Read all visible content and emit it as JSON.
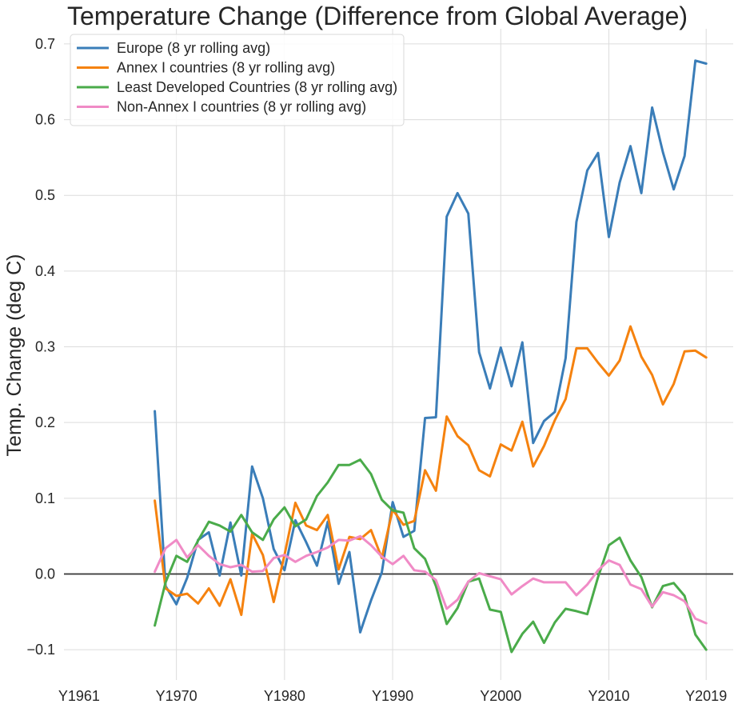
{
  "chart_data": {
    "type": "line",
    "title": "Temperature Change (Difference from Global Average)",
    "xlabel": "",
    "ylabel": "Temp. Change (deg C)",
    "grid": true,
    "legend_position": "top-left",
    "x_tick_labels": [
      "Y1961",
      "Y1970",
      "Y1980",
      "Y1990",
      "Y2000",
      "Y2010",
      "Y2019"
    ],
    "x_ticks": [
      1961,
      1970,
      1980,
      1990,
      2000,
      2010,
      2019
    ],
    "xlim": [
      1959.6,
      2021.5
    ],
    "y_ticks": [
      -0.1,
      0.0,
      0.1,
      0.2,
      0.3,
      0.4,
      0.5,
      0.6,
      0.7
    ],
    "y_tick_labels": [
      "−0.1",
      "0.0",
      "0.1",
      "0.2",
      "0.3",
      "0.4",
      "0.5",
      "0.6",
      "0.7"
    ],
    "ylim": [
      -0.14,
      0.72
    ],
    "reference_line": 0.0,
    "x": [
      1968,
      1969,
      1970,
      1971,
      1972,
      1973,
      1974,
      1975,
      1976,
      1977,
      1978,
      1979,
      1980,
      1981,
      1982,
      1983,
      1984,
      1985,
      1986,
      1987,
      1988,
      1989,
      1990,
      1991,
      1992,
      1993,
      1994,
      1995,
      1996,
      1997,
      1998,
      1999,
      2000,
      2001,
      2002,
      2003,
      2004,
      2005,
      2006,
      2007,
      2008,
      2009,
      2010,
      2011,
      2012,
      2013,
      2014,
      2015,
      2016,
      2017,
      2018,
      2019
    ],
    "series": [
      {
        "name": "Europe (8 yr rolling avg)",
        "color": "#3a7db8",
        "values": [
          0.215,
          -0.016,
          -0.04,
          -0.005,
          0.045,
          0.055,
          -0.002,
          0.068,
          -0.002,
          0.142,
          0.1,
          0.033,
          0.005,
          0.071,
          0.042,
          0.011,
          0.069,
          -0.013,
          0.029,
          -0.077,
          -0.035,
          0.002,
          0.095,
          0.049,
          0.057,
          0.206,
          0.207,
          0.472,
          0.503,
          0.476,
          0.293,
          0.245,
          0.299,
          0.248,
          0.306,
          0.173,
          0.202,
          0.214,
          0.285,
          0.465,
          0.533,
          0.556,
          0.445,
          0.517,
          0.565,
          0.503,
          0.616,
          0.557,
          0.508,
          0.552,
          0.678,
          0.674
        ]
      },
      {
        "name": "Annex I countries (8 yr rolling avg)",
        "color": "#f5820f",
        "values": [
          0.097,
          -0.019,
          -0.029,
          -0.026,
          -0.039,
          -0.019,
          -0.042,
          -0.007,
          -0.054,
          0.053,
          0.025,
          -0.037,
          0.025,
          0.094,
          0.064,
          0.058,
          0.078,
          0.006,
          0.049,
          0.046,
          0.058,
          0.021,
          0.085,
          0.065,
          0.07,
          0.137,
          0.11,
          0.208,
          0.182,
          0.17,
          0.137,
          0.129,
          0.171,
          0.163,
          0.201,
          0.142,
          0.169,
          0.203,
          0.231,
          0.298,
          0.298,
          0.279,
          0.262,
          0.282,
          0.327,
          0.287,
          0.263,
          0.224,
          0.251,
          0.294,
          0.295,
          0.286
        ]
      },
      {
        "name": "Least Developed Countries (8 yr rolling avg)",
        "color": "#4aab4a",
        "values": [
          -0.068,
          -0.011,
          0.024,
          0.016,
          0.044,
          0.069,
          0.064,
          0.056,
          0.078,
          0.055,
          0.045,
          0.072,
          0.088,
          0.063,
          0.072,
          0.103,
          0.121,
          0.144,
          0.144,
          0.151,
          0.132,
          0.098,
          0.084,
          0.081,
          0.034,
          0.02,
          -0.016,
          -0.066,
          -0.045,
          -0.01,
          -0.006,
          -0.047,
          -0.05,
          -0.103,
          -0.079,
          -0.063,
          -0.091,
          -0.064,
          -0.046,
          -0.049,
          -0.053,
          -0.004,
          0.038,
          0.048,
          0.018,
          -0.004,
          -0.044,
          -0.016,
          -0.012,
          -0.029,
          -0.08,
          -0.1
        ]
      },
      {
        "name": "Non-Annex I countries (8 yr rolling avg)",
        "color": "#f08bc6",
        "values": [
          0.003,
          0.034,
          0.045,
          0.022,
          0.038,
          0.024,
          0.013,
          0.009,
          0.012,
          0.003,
          0.004,
          0.021,
          0.025,
          0.016,
          0.024,
          0.029,
          0.035,
          0.045,
          0.044,
          0.05,
          0.038,
          0.023,
          0.013,
          0.024,
          0.005,
          0.003,
          -0.008,
          -0.046,
          -0.034,
          -0.01,
          0.001,
          -0.003,
          -0.007,
          -0.027,
          -0.016,
          -0.006,
          -0.011,
          -0.011,
          -0.011,
          -0.028,
          -0.014,
          0.005,
          0.018,
          0.012,
          -0.014,
          -0.02,
          -0.043,
          -0.024,
          -0.028,
          -0.036,
          -0.059,
          -0.065
        ]
      }
    ]
  }
}
